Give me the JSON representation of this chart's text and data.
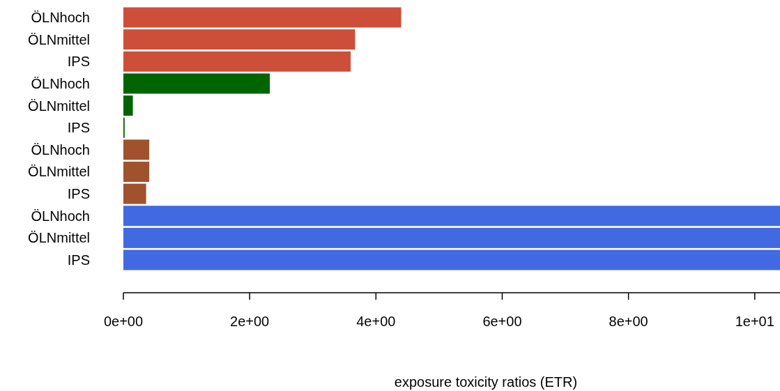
{
  "chart_data": {
    "type": "bar",
    "orientation": "horizontal",
    "xlabel": "exposure toxicity ratios (ETR)",
    "categories": [
      "ÖLNhoch",
      "ÖLNmittel",
      "IPS",
      "ÖLNhoch",
      "ÖLNmittel",
      "IPS",
      "ÖLNhoch",
      "ÖLNmittel",
      "IPS",
      "ÖLNhoch",
      "ÖLNmittel",
      "IPS"
    ],
    "values": [
      4.4,
      3.67,
      3.6,
      2.32,
      0.15,
      0.02,
      0.41,
      0.41,
      0.36,
      10.4,
      10.4,
      10.4
    ],
    "colors": [
      "#cd4f39",
      "#cd4f39",
      "#cd4f39",
      "#006400",
      "#006400",
      "#006400",
      "#a0522d",
      "#a0522d",
      "#a0522d",
      "#4169e1",
      "#4169e1",
      "#4169e1"
    ],
    "xlim": [
      0,
      10.4
    ],
    "xticks": [
      {
        "value": 0,
        "label": "0e+00"
      },
      {
        "value": 2,
        "label": "2e+00"
      },
      {
        "value": 4,
        "label": "4e+00"
      },
      {
        "value": 6,
        "label": "6e+00"
      },
      {
        "value": 8,
        "label": "8e+00"
      },
      {
        "value": 10,
        "label": "1e+01"
      }
    ]
  }
}
